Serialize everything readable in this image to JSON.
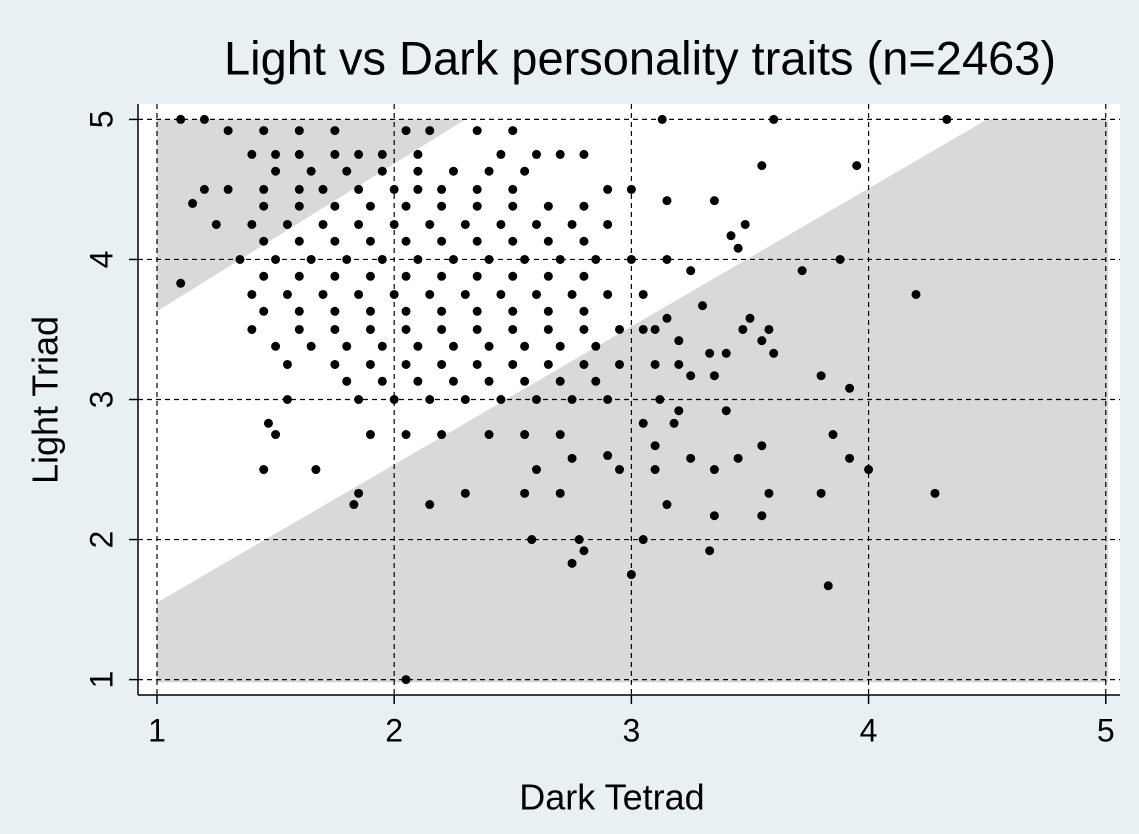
{
  "chart_data": {
    "type": "scatter",
    "title": "Light vs Dark personality traits (n=2463)",
    "x_label": "Dark Tetrad",
    "y_label": "Light Triad",
    "xlim": [
      0.92,
      5.06
    ],
    "ylim": [
      0.89,
      5.11
    ],
    "xticks": [
      1,
      2,
      3,
      4,
      5
    ],
    "yticks": [
      1,
      2,
      3,
      4,
      5
    ],
    "grid": true,
    "color": "#000000",
    "region_color": "#d9d9d9",
    "shaded_regions": [
      {
        "x": [
          1,
          1,
          2.3
        ],
        "y": [
          3.63,
          5,
          5
        ]
      },
      {
        "x": [
          1,
          4.5,
          5.01,
          5.01,
          1
        ],
        "y": [
          1.55,
          5,
          5,
          0.98,
          0.98
        ]
      }
    ],
    "points": [
      [
        1.1,
        5
      ],
      [
        1.1,
        3.83
      ],
      [
        1.2,
        5
      ],
      [
        1.15,
        4.4
      ],
      [
        1.2,
        4.5
      ],
      [
        1.45,
        2.5
      ],
      [
        1.47,
        2.83
      ],
      [
        1.5,
        2.75
      ],
      [
        1.55,
        3
      ],
      [
        1.67,
        2.5
      ],
      [
        1.83,
        2.25
      ],
      [
        1.85,
        2.33
      ],
      [
        2.05,
        1
      ],
      [
        2.15,
        2.25
      ],
      [
        2.3,
        2.33
      ],
      [
        2.58,
        2
      ],
      [
        2.55,
        2.33
      ],
      [
        2.75,
        1.83
      ],
      [
        2.8,
        1.92
      ],
      [
        2.78,
        2
      ],
      [
        3,
        1.75
      ],
      [
        3.05,
        2
      ],
      [
        3.33,
        1.92
      ],
      [
        3.15,
        2.25
      ],
      [
        3.35,
        2.17
      ],
      [
        3.55,
        2.17
      ],
      [
        3.58,
        2.33
      ],
      [
        3.8,
        2.33
      ],
      [
        3.83,
        1.67
      ],
      [
        3.85,
        2.75
      ],
      [
        3.92,
        2.58
      ],
      [
        4,
        2.5
      ],
      [
        4.28,
        2.33
      ],
      [
        4.2,
        3.75
      ],
      [
        3.92,
        3.08
      ],
      [
        3.8,
        3.17
      ],
      [
        3.88,
        4
      ],
      [
        3.95,
        4.67
      ],
      [
        4.33,
        5
      ],
      [
        3.6,
        5
      ],
      [
        3.13,
        5
      ],
      [
        3.55,
        4.67
      ],
      [
        3.72,
        3.92
      ],
      [
        3.6,
        3.33
      ],
      [
        3.55,
        3.42
      ],
      [
        3.47,
        3.5
      ],
      [
        3.5,
        3.58
      ],
      [
        3.45,
        2.58
      ],
      [
        3.35,
        2.5
      ],
      [
        3.55,
        2.67
      ],
      [
        3.4,
        2.92
      ],
      [
        3.58,
        3.5
      ],
      [
        3.35,
        4.42
      ],
      [
        3.48,
        4.25
      ],
      [
        3.45,
        4.08
      ],
      [
        3.42,
        4.17
      ],
      [
        3.15,
        4.42
      ],
      [
        3.25,
        3.92
      ],
      [
        3.3,
        3.67
      ],
      [
        3.33,
        3.33
      ],
      [
        3.2,
        3.25
      ],
      [
        3.25,
        3.17
      ],
      [
        3.35,
        3.17
      ],
      [
        3.4,
        3.33
      ],
      [
        3.1,
        3.5
      ],
      [
        3.15,
        3.58
      ],
      [
        3.2,
        3.42
      ],
      [
        3.12,
        3
      ],
      [
        3.18,
        2.83
      ],
      [
        3.1,
        2.67
      ],
      [
        3.05,
        2.83
      ],
      [
        3.2,
        2.92
      ],
      [
        2.95,
        2.5
      ],
      [
        2.6,
        2.5
      ],
      [
        2.7,
        2.33
      ],
      [
        2.75,
        2.58
      ],
      [
        2.9,
        2.6
      ],
      [
        3.1,
        2.5
      ],
      [
        3.25,
        2.58
      ],
      [
        1.3,
        4.92
      ],
      [
        1.45,
        4.92
      ],
      [
        1.6,
        4.92
      ],
      [
        1.75,
        4.92
      ],
      [
        2.05,
        4.92
      ],
      [
        2.15,
        4.92
      ],
      [
        2.35,
        4.92
      ],
      [
        2.5,
        4.92
      ],
      [
        1.4,
        4.75
      ],
      [
        1.5,
        4.75
      ],
      [
        1.6,
        4.75
      ],
      [
        1.75,
        4.75
      ],
      [
        1.85,
        4.75
      ],
      [
        1.95,
        4.75
      ],
      [
        2.1,
        4.75
      ],
      [
        2.45,
        4.75
      ],
      [
        2.6,
        4.75
      ],
      [
        2.7,
        4.75
      ],
      [
        2.8,
        4.75
      ],
      [
        1.5,
        4.63
      ],
      [
        1.65,
        4.63
      ],
      [
        1.8,
        4.63
      ],
      [
        1.95,
        4.63
      ],
      [
        2.1,
        4.63
      ],
      [
        2.25,
        4.63
      ],
      [
        2.4,
        4.63
      ],
      [
        2.55,
        4.63
      ],
      [
        1.3,
        4.5
      ],
      [
        1.45,
        4.5
      ],
      [
        1.6,
        4.5
      ],
      [
        1.7,
        4.5
      ],
      [
        1.85,
        4.5
      ],
      [
        2,
        4.5
      ],
      [
        2.1,
        4.5
      ],
      [
        2.2,
        4.5
      ],
      [
        2.35,
        4.5
      ],
      [
        2.5,
        4.5
      ],
      [
        2.9,
        4.5
      ],
      [
        3,
        4.5
      ],
      [
        1.45,
        4.38
      ],
      [
        1.6,
        4.38
      ],
      [
        1.75,
        4.38
      ],
      [
        1.9,
        4.38
      ],
      [
        2.05,
        4.38
      ],
      [
        2.2,
        4.38
      ],
      [
        2.35,
        4.38
      ],
      [
        2.5,
        4.38
      ],
      [
        2.65,
        4.38
      ],
      [
        2.8,
        4.38
      ],
      [
        1.25,
        4.25
      ],
      [
        1.4,
        4.25
      ],
      [
        1.55,
        4.25
      ],
      [
        1.7,
        4.25
      ],
      [
        1.85,
        4.25
      ],
      [
        2,
        4.25
      ],
      [
        2.15,
        4.25
      ],
      [
        2.3,
        4.25
      ],
      [
        2.45,
        4.25
      ],
      [
        2.6,
        4.25
      ],
      [
        2.75,
        4.25
      ],
      [
        2.9,
        4.25
      ],
      [
        1.45,
        4.13
      ],
      [
        1.6,
        4.13
      ],
      [
        1.75,
        4.13
      ],
      [
        1.9,
        4.13
      ],
      [
        2.05,
        4.13
      ],
      [
        2.2,
        4.13
      ],
      [
        2.35,
        4.13
      ],
      [
        2.5,
        4.13
      ],
      [
        2.65,
        4.13
      ],
      [
        2.8,
        4.13
      ],
      [
        1.35,
        4
      ],
      [
        1.5,
        4
      ],
      [
        1.65,
        4
      ],
      [
        1.8,
        4
      ],
      [
        1.95,
        4
      ],
      [
        2.1,
        4
      ],
      [
        2.25,
        4
      ],
      [
        2.4,
        4
      ],
      [
        2.55,
        4
      ],
      [
        2.7,
        4
      ],
      [
        2.85,
        4
      ],
      [
        3,
        4
      ],
      [
        3.15,
        4
      ],
      [
        1.45,
        3.88
      ],
      [
        1.6,
        3.88
      ],
      [
        1.75,
        3.88
      ],
      [
        1.9,
        3.88
      ],
      [
        2.05,
        3.88
      ],
      [
        2.2,
        3.88
      ],
      [
        2.35,
        3.88
      ],
      [
        2.5,
        3.88
      ],
      [
        2.65,
        3.88
      ],
      [
        2.8,
        3.88
      ],
      [
        1.4,
        3.75
      ],
      [
        1.55,
        3.75
      ],
      [
        1.7,
        3.75
      ],
      [
        1.85,
        3.75
      ],
      [
        2,
        3.75
      ],
      [
        2.15,
        3.75
      ],
      [
        2.3,
        3.75
      ],
      [
        2.45,
        3.75
      ],
      [
        2.6,
        3.75
      ],
      [
        2.75,
        3.75
      ],
      [
        2.9,
        3.75
      ],
      [
        3.05,
        3.75
      ],
      [
        1.45,
        3.63
      ],
      [
        1.6,
        3.63
      ],
      [
        1.75,
        3.63
      ],
      [
        1.9,
        3.63
      ],
      [
        2.05,
        3.63
      ],
      [
        2.2,
        3.63
      ],
      [
        2.35,
        3.63
      ],
      [
        2.5,
        3.63
      ],
      [
        2.65,
        3.63
      ],
      [
        2.8,
        3.63
      ],
      [
        1.4,
        3.5
      ],
      [
        1.6,
        3.5
      ],
      [
        1.75,
        3.5
      ],
      [
        1.9,
        3.5
      ],
      [
        2.05,
        3.5
      ],
      [
        2.2,
        3.5
      ],
      [
        2.35,
        3.5
      ],
      [
        2.5,
        3.5
      ],
      [
        2.65,
        3.5
      ],
      [
        2.8,
        3.5
      ],
      [
        2.95,
        3.5
      ],
      [
        3.05,
        3.5
      ],
      [
        1.5,
        3.38
      ],
      [
        1.65,
        3.38
      ],
      [
        1.8,
        3.38
      ],
      [
        1.95,
        3.38
      ],
      [
        2.1,
        3.38
      ],
      [
        2.25,
        3.38
      ],
      [
        2.4,
        3.38
      ],
      [
        2.55,
        3.38
      ],
      [
        2.7,
        3.38
      ],
      [
        2.85,
        3.38
      ],
      [
        1.55,
        3.25
      ],
      [
        1.75,
        3.25
      ],
      [
        1.9,
        3.25
      ],
      [
        2.05,
        3.25
      ],
      [
        2.2,
        3.25
      ],
      [
        2.35,
        3.25
      ],
      [
        2.5,
        3.25
      ],
      [
        2.65,
        3.25
      ],
      [
        2.8,
        3.25
      ],
      [
        2.95,
        3.25
      ],
      [
        3.1,
        3.25
      ],
      [
        1.8,
        3.13
      ],
      [
        1.95,
        3.13
      ],
      [
        2.1,
        3.13
      ],
      [
        2.25,
        3.13
      ],
      [
        2.4,
        3.13
      ],
      [
        2.55,
        3.13
      ],
      [
        2.7,
        3.13
      ],
      [
        2.85,
        3.13
      ],
      [
        1.85,
        3
      ],
      [
        2,
        3
      ],
      [
        2.15,
        3
      ],
      [
        2.3,
        3
      ],
      [
        2.45,
        3
      ],
      [
        2.6,
        3
      ],
      [
        2.75,
        3
      ],
      [
        2.9,
        3
      ],
      [
        1.9,
        2.75
      ],
      [
        2.05,
        2.75
      ],
      [
        2.2,
        2.75
      ],
      [
        2.4,
        2.75
      ],
      [
        2.55,
        2.75
      ],
      [
        2.7,
        2.75
      ]
    ]
  }
}
